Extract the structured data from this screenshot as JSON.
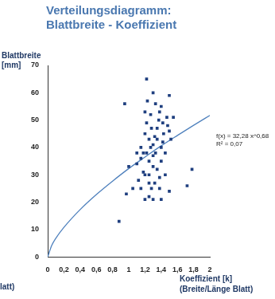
{
  "chart_data": {
    "type": "scatter",
    "title": [
      "Verteilungsdiagramm:",
      "Blattbreite - Koeffizient"
    ],
    "y_label": [
      "Blattbreite",
      "[mm]"
    ],
    "x_label": [
      "Koeffizient [k]",
      "(Breite/Länge Blatt)"
    ],
    "annotations": [
      "f(x) = 32,28 x^0,68",
      "R² = 0,07",
      "latt)"
    ],
    "xlim": [
      0,
      2
    ],
    "xticks": [
      0,
      {
        "value": 0.2,
        "label": "0,2"
      },
      {
        "value": 0.4,
        "label": "0,4"
      },
      {
        "value": 0.6,
        "label": "0,6"
      },
      {
        "value": 0.8,
        "label": "0,8"
      },
      1,
      {
        "value": 1.2,
        "label": "1,2"
      },
      {
        "value": 1.4,
        "label": "1,4"
      },
      {
        "value": 1.6,
        "label": "1,6"
      },
      {
        "value": 1.8,
        "label": "1,8"
      },
      2
    ],
    "ylim": [
      0,
      70
    ],
    "yticks": [
      0,
      10,
      20,
      30,
      40,
      50,
      60,
      70
    ],
    "grid": false,
    "series": [
      {
        "type": "scatter",
        "marker": "square",
        "color": "#1f3f7f",
        "x": [
          0.88,
          0.95,
          0.97,
          1.0,
          1.05,
          1.1,
          1.12,
          1.15,
          1.15,
          1.18,
          1.2,
          1.2,
          1.2,
          1.22,
          1.22,
          1.22,
          1.25,
          1.25,
          1.25,
          1.25,
          1.25,
          1.27,
          1.28,
          1.28,
          1.3,
          1.3,
          1.3,
          1.3,
          1.3,
          1.32,
          1.33,
          1.33,
          1.35,
          1.35,
          1.37,
          1.38,
          1.38,
          1.4,
          1.4,
          1.4,
          1.4,
          1.42,
          1.42,
          1.43,
          1.45,
          1.45,
          1.47,
          1.48,
          1.5,
          1.5,
          1.5,
          1.52,
          1.55,
          1.72,
          1.78,
          1.18,
          1.23,
          1.27,
          1.35,
          1.2,
          1.15,
          1.1,
          1.38,
          1.32
        ],
        "values": [
          13,
          56,
          23,
          33,
          25,
          34,
          28,
          36,
          40,
          31,
          21,
          45,
          53,
          65,
          49,
          38,
          22,
          27,
          30,
          35,
          43,
          52,
          25,
          47,
          33,
          37,
          41,
          60,
          21,
          44,
          56,
          38,
          47,
          32,
          50,
          29,
          25,
          40,
          35,
          55,
          21,
          49,
          42,
          45,
          30,
          38,
          51,
          48,
          24,
          59,
          46,
          43,
          51,
          26,
          32,
          38,
          57,
          40,
          43,
          30,
          25,
          38,
          53,
          27
        ]
      },
      {
        "type": "line",
        "line_style": "solid",
        "color": "#4f81bd",
        "x": [
          0,
          0.05,
          0.1,
          0.2,
          0.4,
          0.6,
          0.8,
          1.0,
          1.2,
          1.4,
          1.6,
          1.8,
          2.0
        ],
        "values": [
          0,
          4.2,
          6.8,
          10.8,
          17.3,
          22.8,
          27.7,
          32.3,
          36.5,
          40.6,
          44.4,
          48.1,
          51.7
        ]
      }
    ]
  }
}
